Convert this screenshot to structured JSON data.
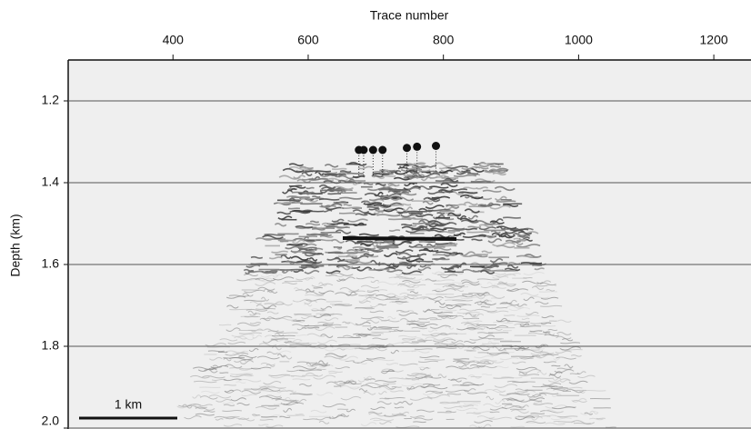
{
  "chart_data": {
    "type": "scatter",
    "x_label": "Trace number",
    "y_label": "Depth (km)",
    "xlim": [
      245,
      1255
    ],
    "xticks": [
      400,
      600,
      800,
      1000,
      1200
    ],
    "ylim": [
      1.1,
      2.0
    ],
    "yticks": [
      1.2,
      1.4,
      1.6,
      1.8,
      {
        "value": 2.0,
        "label": "2.0"
      }
    ],
    "grid": true,
    "color": "#111111",
    "x": [
      675,
      682,
      696,
      710,
      746,
      761,
      789
    ],
    "values": [
      1.32,
      1.32,
      1.32,
      1.32,
      1.315,
      1.312,
      1.31
    ],
    "scale_bar_label": "1 km"
  }
}
